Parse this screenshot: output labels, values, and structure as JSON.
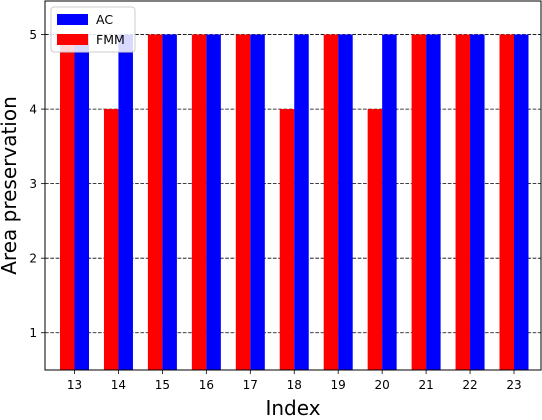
{
  "chart_data": {
    "type": "bar",
    "xlabel": "Index",
    "ylabel": "Area preservation",
    "categories": [
      "13",
      "14",
      "15",
      "16",
      "17",
      "18",
      "19",
      "20",
      "21",
      "22",
      "23"
    ],
    "series": [
      {
        "name": "FMM",
        "color": "#ff0000",
        "values": [
          5,
          4,
          5,
          5,
          5,
          4,
          5,
          4,
          5,
          5,
          5
        ]
      },
      {
        "name": "AC",
        "color": "#0000ff",
        "values": [
          5,
          5,
          5,
          5,
          5,
          5,
          5,
          5,
          5,
          5,
          5
        ]
      }
    ],
    "legend_order": [
      "AC",
      "FMM"
    ],
    "legend_position": "upper-left",
    "yticks": [
      "1",
      "2",
      "3",
      "4",
      "5"
    ],
    "ylim": [
      0.5,
      5.45
    ],
    "grid": "horizontal-dashed"
  }
}
